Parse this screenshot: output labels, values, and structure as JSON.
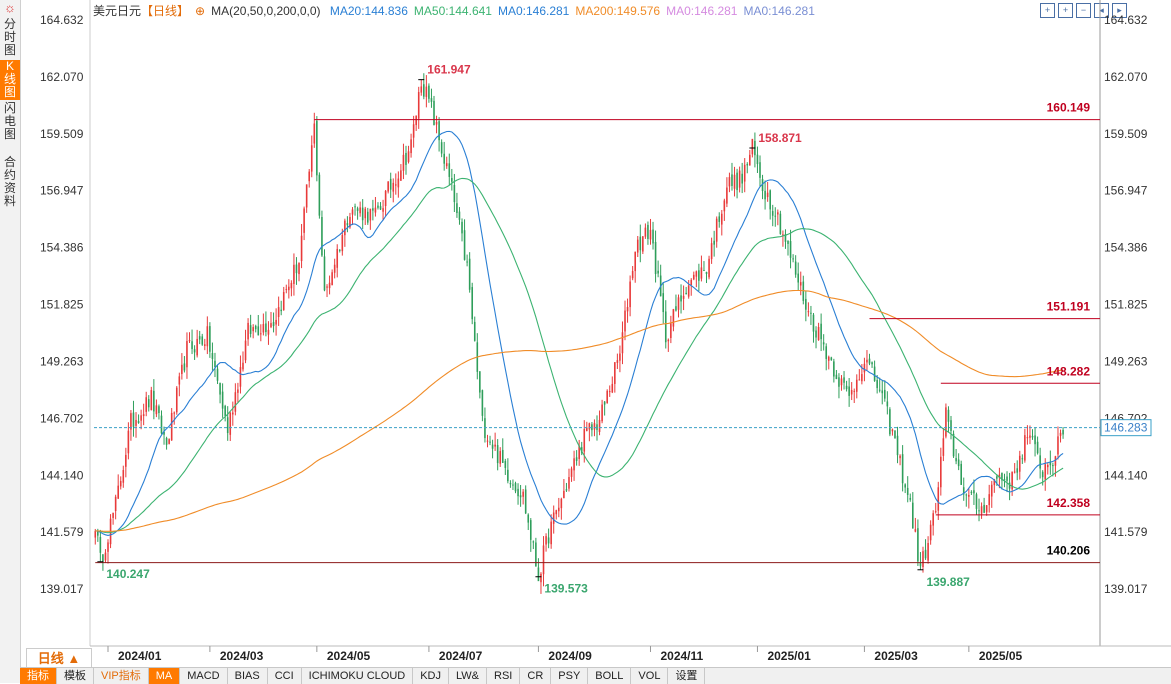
{
  "sidebar": {
    "tabs": [
      {
        "label": "分时图",
        "active": false
      },
      {
        "label": "K线图",
        "active": true
      },
      {
        "label": "闪电图",
        "active": false
      },
      {
        "label": "合约资料",
        "active": false
      }
    ]
  },
  "legend": {
    "symbol": "美元日元",
    "period": "【日线】",
    "indicator": "MA(20,50,0,200,0,0)",
    "items": [
      {
        "label": "MA20:144.836",
        "color": "#2a7fd4"
      },
      {
        "label": "MA50:144.641",
        "color": "#3cb371"
      },
      {
        "label": "MA0:146.281",
        "color": "#2a7fd4"
      },
      {
        "label": "MA200:149.576",
        "color": "#f08c28"
      },
      {
        "label": "MA0:146.281",
        "color": "#d58be0"
      },
      {
        "label": "MA0:146.281",
        "color": "#7a8fd4"
      }
    ]
  },
  "period_button": "日线 ▲",
  "bottom_tabs": [
    "指标",
    "模板",
    "VIP指标",
    "MA",
    "MACD",
    "BIAS",
    "CCI",
    "ICHIMOKU CLOUD",
    "KDJ",
    "LW&",
    "RSI",
    "CR",
    "PSY",
    "BOLL",
    "VOL",
    "设置"
  ],
  "chart_data": {
    "type": "candlestick",
    "title": "",
    "ylim": [
      136.456,
      164.632
    ],
    "y_ticks": [
      "164.632",
      "162.070",
      "159.509",
      "156.947",
      "154.386",
      "151.825",
      "149.263",
      "146.702",
      "144.140",
      "141.579",
      "139.017"
    ],
    "x_ticks": [
      {
        "label": "2024/01",
        "index": 5
      },
      {
        "label": "2024/03",
        "index": 45
      },
      {
        "label": "2024/05",
        "index": 87
      },
      {
        "label": "2024/07",
        "index": 131
      },
      {
        "label": "2024/09",
        "index": 174
      },
      {
        "label": "2024/11",
        "index": 218
      },
      {
        "label": "2025/01",
        "index": 260
      },
      {
        "label": "2025/03",
        "index": 302
      },
      {
        "label": "2025/05",
        "index": 343
      }
    ],
    "n_bars": 395,
    "current_price": "146.283",
    "current_value": 146.283,
    "up_color": "#e83a3a",
    "down_color": "#2e9e5a",
    "anchors": [
      [
        0,
        142.0
      ],
      [
        2,
        140.247
      ],
      [
        8,
        142.8
      ],
      [
        14,
        146.5
      ],
      [
        22,
        147.6
      ],
      [
        28,
        145.5
      ],
      [
        36,
        149.8
      ],
      [
        44,
        150.4
      ],
      [
        52,
        146.2
      ],
      [
        60,
        150.6
      ],
      [
        70,
        151.1
      ],
      [
        80,
        153.8
      ],
      [
        86,
        159.8
      ],
      [
        90,
        152.2
      ],
      [
        100,
        156.2
      ],
      [
        110,
        155.8
      ],
      [
        118,
        157.6
      ],
      [
        124,
        159.0
      ],
      [
        128,
        161.947
      ],
      [
        132,
        160.6
      ],
      [
        140,
        157.0
      ],
      [
        146,
        153.5
      ],
      [
        152,
        146.5
      ],
      [
        160,
        144.6
      ],
      [
        168,
        143.2
      ],
      [
        174,
        139.573
      ],
      [
        178,
        141.5
      ],
      [
        186,
        144.0
      ],
      [
        192,
        145.9
      ],
      [
        198,
        146.6
      ],
      [
        206,
        149.6
      ],
      [
        212,
        154.4
      ],
      [
        218,
        155.2
      ],
      [
        224,
        150.4
      ],
      [
        232,
        152.7
      ],
      [
        240,
        153.5
      ],
      [
        248,
        157.2
      ],
      [
        254,
        157.5
      ],
      [
        258,
        158.871
      ],
      [
        262,
        157.2
      ],
      [
        268,
        155.8
      ],
      [
        274,
        153.6
      ],
      [
        280,
        151.5
      ],
      [
        286,
        150.0
      ],
      [
        292,
        148.5
      ],
      [
        296,
        147.6
      ],
      [
        302,
        149.4
      ],
      [
        308,
        148.0
      ],
      [
        314,
        145.6
      ],
      [
        320,
        142.8
      ],
      [
        324,
        139.887
      ],
      [
        330,
        142.6
      ],
      [
        334,
        146.8
      ],
      [
        338,
        144.8
      ],
      [
        342,
        143.2
      ],
      [
        348,
        142.6
      ],
      [
        354,
        144.1
      ],
      [
        360,
        143.9
      ],
      [
        366,
        146.0
      ],
      [
        372,
        144.4
      ],
      [
        376,
        144.9
      ],
      [
        380,
        146.0
      ]
    ],
    "annotations": [
      {
        "label": "161.947",
        "index": 128,
        "value": 161.947,
        "color": "#d9364b",
        "place": "above"
      },
      {
        "label": "158.871",
        "index": 258,
        "value": 158.871,
        "color": "#d9364b",
        "place": "above"
      },
      {
        "label": "140.247",
        "index": 2,
        "value": 140.247,
        "color": "#3aa66e",
        "place": "below"
      },
      {
        "label": "139.573",
        "index": 174,
        "value": 139.573,
        "color": "#3aa66e",
        "place": "below"
      },
      {
        "label": "139.887",
        "index": 324,
        "value": 139.887,
        "color": "#3aa66e",
        "place": "below"
      }
    ],
    "levels": [
      {
        "label": "160.149",
        "value": 160.149,
        "from_index": 86,
        "color": "#c0001f"
      },
      {
        "label": "151.191",
        "value": 151.191,
        "from_index": 304,
        "color": "#c0001f"
      },
      {
        "label": "148.282",
        "value": 148.282,
        "from_index": 332,
        "color": "#c0001f"
      },
      {
        "label": "142.358",
        "value": 142.358,
        "from_index": 330,
        "color": "#c0001f"
      },
      {
        "label": "140.206",
        "value": 140.206,
        "from_index": 0,
        "color": "#000000"
      }
    ],
    "ma_colors": {
      "ma20": "#2a7fd4",
      "ma50": "#3cb371",
      "ma200": "#f08c28"
    }
  }
}
